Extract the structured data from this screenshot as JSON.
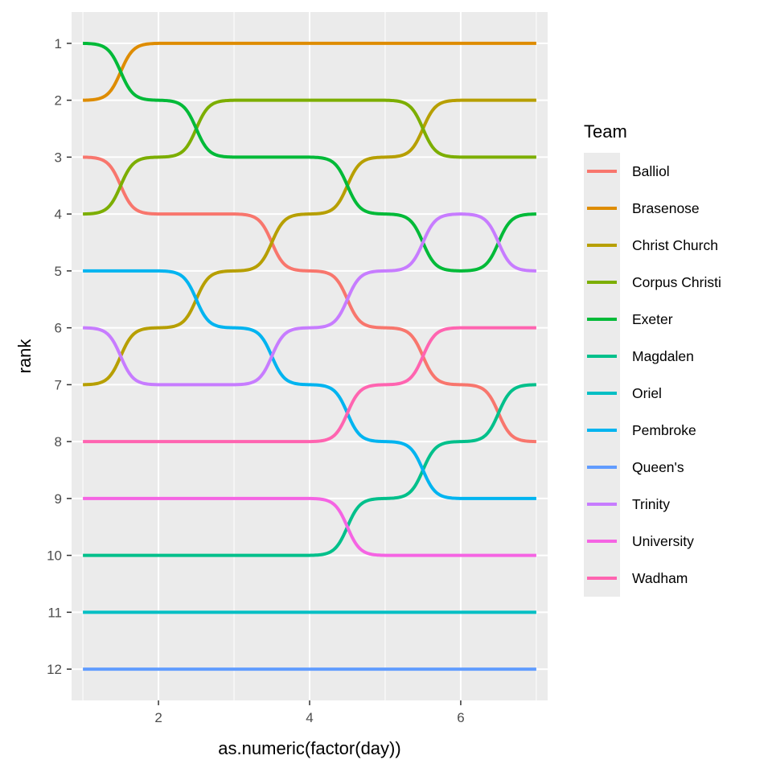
{
  "chart_data": {
    "type": "line",
    "xlabel": "as.numeric(factor(day))",
    "ylabel": "rank",
    "xlim": [
      0.85,
      7.15
    ],
    "ylim": [
      0.45,
      12.55
    ],
    "y_reversed": true,
    "x_ticks": [
      2,
      4,
      6
    ],
    "y_ticks": [
      1,
      2,
      3,
      4,
      5,
      6,
      7,
      8,
      9,
      10,
      11,
      12
    ],
    "grid": true,
    "curve": "sigmoid",
    "x": [
      1,
      2,
      3,
      4,
      5,
      6,
      7
    ],
    "legend": {
      "title": "Team",
      "position": "right"
    },
    "series": [
      {
        "name": "Balliol",
        "color": "#F8766D",
        "values": [
          3,
          4,
          4,
          5,
          6,
          7,
          8
        ]
      },
      {
        "name": "Brasenose",
        "color": "#DE8C00",
        "values": [
          2,
          1,
          1,
          1,
          1,
          1,
          1
        ]
      },
      {
        "name": "Christ Church",
        "color": "#B79F00",
        "values": [
          7,
          6,
          5,
          4,
          3,
          2,
          2
        ]
      },
      {
        "name": "Corpus Christi",
        "color": "#7CAE00",
        "values": [
          4,
          3,
          2,
          2,
          2,
          3,
          3
        ]
      },
      {
        "name": "Exeter",
        "color": "#00BA38",
        "values": [
          1,
          2,
          3,
          3,
          4,
          5,
          4
        ]
      },
      {
        "name": "Magdalen",
        "color": "#00C08B",
        "values": [
          10,
          10,
          10,
          10,
          9,
          8,
          7
        ]
      },
      {
        "name": "Oriel",
        "color": "#00BFC4",
        "values": [
          11,
          11,
          11,
          11,
          11,
          11,
          11
        ]
      },
      {
        "name": "Pembroke",
        "color": "#00B4F0",
        "values": [
          5,
          5,
          6,
          7,
          8,
          9,
          9
        ]
      },
      {
        "name": "Queen's",
        "color": "#619CFF",
        "values": [
          12,
          12,
          12,
          12,
          12,
          12,
          12
        ]
      },
      {
        "name": "Trinity",
        "color": "#C77CFF",
        "values": [
          6,
          7,
          7,
          6,
          5,
          4,
          5
        ]
      },
      {
        "name": "University",
        "color": "#F564E3",
        "values": [
          9,
          9,
          9,
          9,
          10,
          10,
          10
        ]
      },
      {
        "name": "Wadham",
        "color": "#FF64B0",
        "values": [
          8,
          8,
          8,
          8,
          7,
          6,
          6
        ]
      }
    ]
  }
}
